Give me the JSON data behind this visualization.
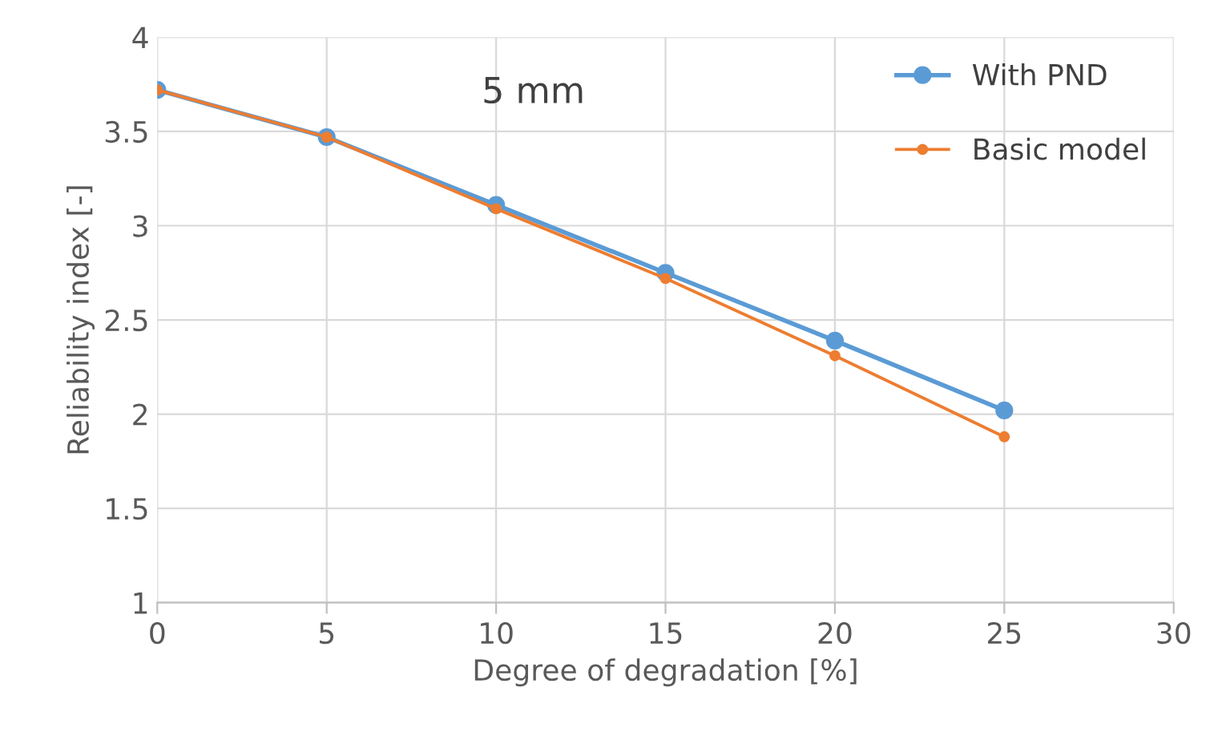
{
  "chart_data": {
    "type": "line",
    "title": "5 mm",
    "xlabel": "Degree of degradation [%]",
    "ylabel": "Reliability index [-]",
    "x": [
      0,
      5,
      10,
      15,
      20,
      25
    ],
    "series": [
      {
        "name": "With PND",
        "color": "#5b9bd5",
        "values": [
          3.72,
          3.47,
          3.11,
          2.75,
          2.39,
          2.02
        ]
      },
      {
        "name": "Basic model",
        "color": "#ed7d31",
        "values": [
          3.72,
          3.47,
          3.09,
          2.72,
          2.31,
          1.88
        ]
      }
    ],
    "xlim": [
      0,
      30
    ],
    "xticks": [
      0,
      5,
      10,
      15,
      20,
      25,
      30
    ],
    "ylim": [
      1,
      4
    ],
    "yticks": [
      1,
      1.5,
      2,
      2.5,
      3,
      3.5,
      4
    ],
    "grid": true,
    "legend": "top right",
    "marker": "circle",
    "line_style": "solid"
  }
}
